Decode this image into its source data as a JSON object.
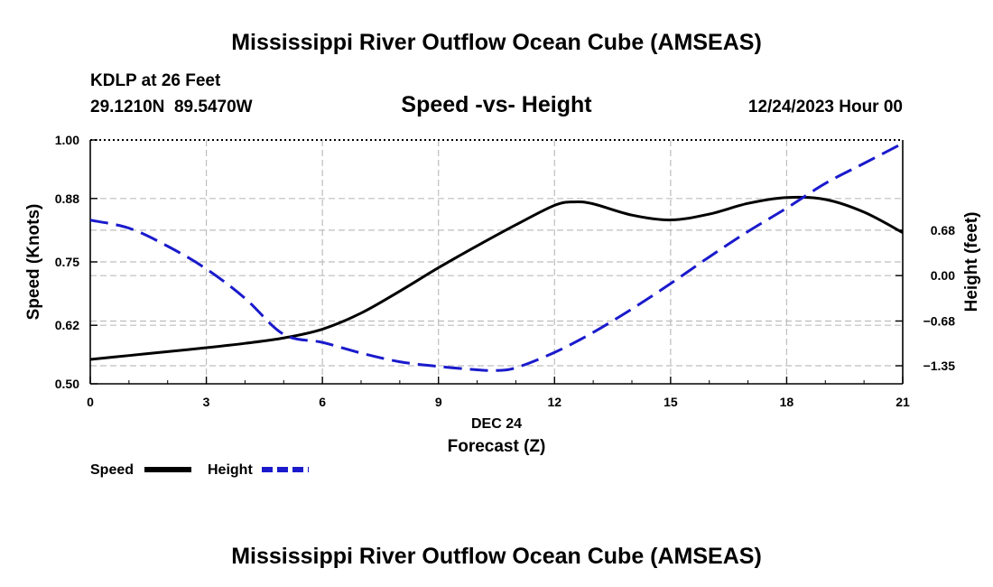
{
  "title": "Mississippi River Outflow Ocean Cube (AMSEAS)",
  "footer_title": "Mississippi River Outflow Ocean Cube (AMSEAS)",
  "station": {
    "name": "KDLP at 26 Feet",
    "coords": "29.1210N  89.5470W"
  },
  "chart_data": {
    "type": "line",
    "title": "Speed -vs- Height",
    "datetime_label": "12/24/2023 Hour 00",
    "xlabel": "Forecast (Z)",
    "xdate_label": "DEC 24",
    "ylabel_left": "Speed (Knots)",
    "ylabel_right": "Height (feet)",
    "xlim": [
      0,
      21
    ],
    "x_ticks": [
      0,
      3,
      6,
      9,
      12,
      15,
      18,
      21
    ],
    "x_tick_labels": [
      "0",
      "3",
      "6",
      "9",
      "12",
      "15",
      "18",
      "21"
    ],
    "ylim_left": [
      0.5,
      1.0
    ],
    "y_left_ticks": [
      0.5,
      0.62,
      0.75,
      0.88,
      1.0
    ],
    "y_left_tick_labels": [
      "0.50",
      "0.62",
      "0.75",
      "0.88",
      "1.00"
    ],
    "ylim_right": [
      -1.62,
      2.03
    ],
    "y_right_ticks": [
      -1.35,
      -0.68,
      0.0,
      0.68
    ],
    "y_right_tick_labels": [
      "−1.35",
      "−0.68",
      "0.00",
      "0.68"
    ],
    "grid": true,
    "series": [
      {
        "name": "Speed",
        "axis": "left",
        "color": "#000000",
        "dash": "solid",
        "x": [
          0,
          1,
          2,
          3,
          4,
          5,
          6,
          7,
          8,
          9,
          10,
          11,
          12,
          12.5,
          13,
          14,
          15,
          16,
          17,
          18,
          19,
          20,
          21
        ],
        "values": [
          0.55,
          0.558,
          0.566,
          0.574,
          0.583,
          0.594,
          0.612,
          0.645,
          0.69,
          0.738,
          0.783,
          0.826,
          0.866,
          0.873,
          0.869,
          0.846,
          0.836,
          0.848,
          0.87,
          0.882,
          0.878,
          0.852,
          0.81
        ]
      },
      {
        "name": "Height",
        "axis": "right",
        "color": "#1a1acc",
        "dash": "dashed",
        "x": [
          0,
          1,
          2,
          3,
          4,
          5,
          6,
          7,
          8,
          9,
          10,
          10.5,
          11,
          12,
          13,
          14,
          15,
          16,
          17,
          18,
          19,
          20,
          21
        ],
        "values": [
          0.83,
          0.71,
          0.44,
          0.1,
          -0.34,
          -0.88,
          -1.0,
          -1.16,
          -1.29,
          -1.36,
          -1.41,
          -1.42,
          -1.38,
          -1.15,
          -0.85,
          -0.5,
          -0.12,
          0.28,
          0.66,
          1.01,
          1.38,
          1.68,
          1.98
        ]
      }
    ],
    "legend_position": "bottom-left"
  }
}
